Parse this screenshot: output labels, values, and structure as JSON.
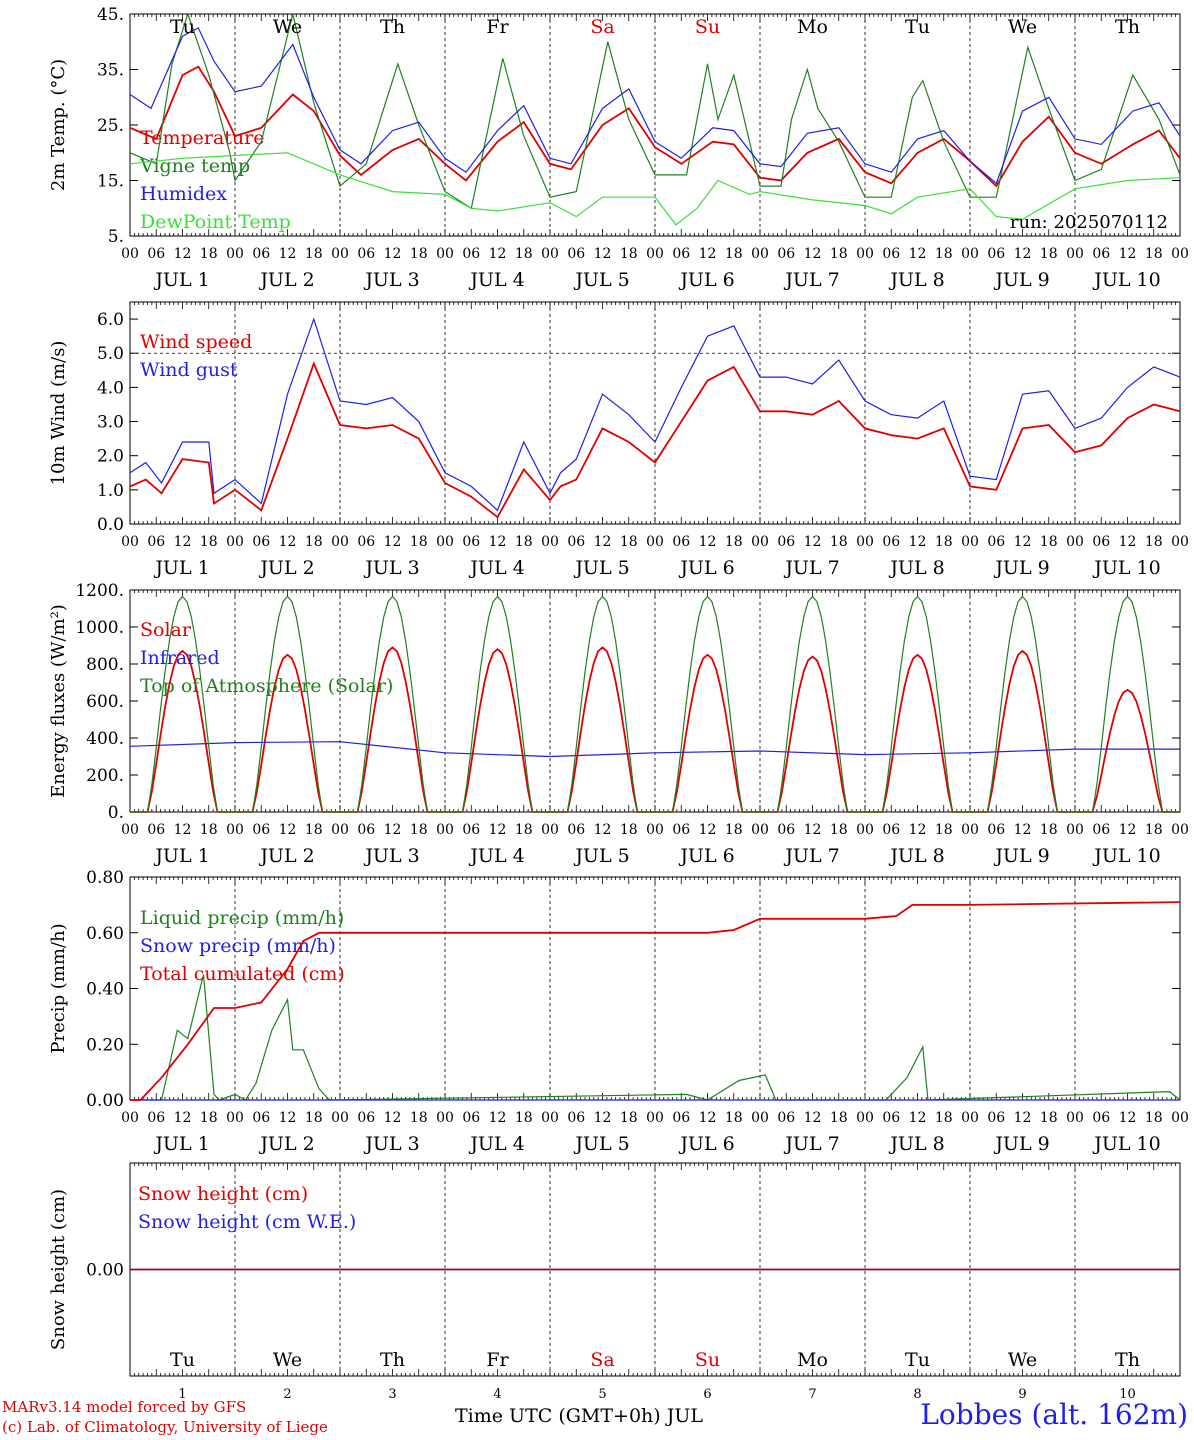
{
  "run_label": "run: 2025070112",
  "day_names": [
    {
      "name": "Tu",
      "color": "#000000"
    },
    {
      "name": "We",
      "color": "#000000"
    },
    {
      "name": "Th",
      "color": "#000000"
    },
    {
      "name": "Fr",
      "color": "#000000"
    },
    {
      "name": "Sa",
      "color": "#e00000"
    },
    {
      "name": "Su",
      "color": "#e00000"
    },
    {
      "name": "Mo",
      "color": "#000000"
    },
    {
      "name": "Tu",
      "color": "#000000"
    },
    {
      "name": "We",
      "color": "#000000"
    },
    {
      "name": "Th",
      "color": "#000000"
    }
  ],
  "date_labels": [
    "JUL 1",
    "JUL 2",
    "JUL 3",
    "JUL 4",
    "JUL 5",
    "JUL 6",
    "JUL 7",
    "JUL 8",
    "JUL 9",
    "JUL 10"
  ],
  "day_numbers": [
    "1",
    "2",
    "3",
    "4",
    "5",
    "6",
    "7",
    "8",
    "9",
    "10"
  ],
  "hour_ticks": [
    "00",
    "06",
    "12",
    "18"
  ],
  "footer": {
    "credit_line1": "MARv3.14 model forced by GFS",
    "credit_line2": "(c) Lab. of Climatology, University of Liege",
    "x_axis_title": "Time UTC (GMT+0h) JUL",
    "station": "Lobbes (alt. 162m)"
  },
  "colors": {
    "red": "#e00000",
    "green": "#208020",
    "blue": "#1f1fe6",
    "lightgreen": "#38e038"
  },
  "chart_data": [
    {
      "type": "line",
      "ylabel": "2m Temp. (°C)",
      "ylim": [
        5,
        45
      ],
      "yticks": [
        5,
        15,
        25,
        35,
        45
      ],
      "ytick_labels": [
        "5.",
        "15.",
        "25.",
        "35.",
        "45."
      ],
      "x_unit": "days since JUL 1 00 UTC",
      "x_range": [
        0,
        10
      ],
      "series": [
        {
          "name": "Temperature",
          "color": "#e00000",
          "x": [
            0,
            0.25,
            0.5,
            0.65,
            0.8,
            1.0,
            1.25,
            1.55,
            1.75,
            2.0,
            2.2,
            2.5,
            2.75,
            3.0,
            3.2,
            3.5,
            3.75,
            4.0,
            4.2,
            4.5,
            4.75,
            5.0,
            5.25,
            5.55,
            5.75,
            6.0,
            6.2,
            6.45,
            6.75,
            7.0,
            7.25,
            7.5,
            7.75,
            8.0,
            8.25,
            8.5,
            8.75,
            9.0,
            9.25,
            9.55,
            9.8,
            10.0
          ],
          "y": [
            24.5,
            22.5,
            34,
            35.5,
            31,
            23,
            24.5,
            30.5,
            27.5,
            19.5,
            16,
            20.5,
            22.5,
            18,
            15,
            22,
            25.5,
            18,
            17,
            25,
            28,
            21,
            18,
            22,
            21.5,
            15.5,
            15,
            20,
            22.5,
            16.5,
            14.5,
            20,
            22.5,
            18.5,
            14,
            22,
            26.5,
            20,
            18,
            21.5,
            24,
            19
          ]
        },
        {
          "name": "Vigne temp",
          "color": "#208020",
          "x": [
            0,
            0.25,
            0.4,
            0.55,
            0.75,
            0.95,
            1.0,
            1.25,
            1.55,
            1.75,
            2.0,
            2.25,
            2.55,
            2.75,
            3.0,
            3.25,
            3.55,
            3.75,
            4.0,
            4.25,
            4.55,
            4.75,
            5.0,
            5.3,
            5.5,
            5.6,
            5.75,
            6.0,
            6.2,
            6.3,
            6.45,
            6.55,
            6.75,
            7.0,
            7.25,
            7.45,
            7.55,
            7.75,
            8.0,
            8.25,
            8.55,
            8.75,
            9.0,
            9.25,
            9.55,
            9.8,
            10.0
          ],
          "y": [
            20,
            18,
            36,
            45,
            34,
            20,
            15,
            22,
            45,
            29,
            14,
            18,
            36,
            25,
            13,
            10,
            37,
            23,
            12,
            13,
            40,
            26,
            16,
            16,
            36,
            26,
            34,
            14,
            14,
            26,
            35,
            28,
            22,
            12,
            12,
            30,
            33,
            22,
            12,
            12,
            39,
            28,
            15,
            17,
            34,
            26,
            16
          ]
        },
        {
          "name": "Humidex",
          "color": "#1f1fe6",
          "x": [
            0,
            0.2,
            0.5,
            0.65,
            0.8,
            1.0,
            1.25,
            1.55,
            1.75,
            2.0,
            2.2,
            2.5,
            2.75,
            3.0,
            3.2,
            3.5,
            3.75,
            4.0,
            4.2,
            4.5,
            4.75,
            5.0,
            5.25,
            5.55,
            5.75,
            6.0,
            6.2,
            6.45,
            6.75,
            7.0,
            7.25,
            7.5,
            7.75,
            8.0,
            8.25,
            8.5,
            8.75,
            9.0,
            9.25,
            9.55,
            9.8,
            10.0
          ],
          "y": [
            30.5,
            28,
            41,
            42.5,
            36.5,
            31,
            32,
            39.5,
            30,
            20.5,
            18,
            24,
            25.5,
            19,
            16.5,
            24,
            28.5,
            19,
            18,
            28,
            31.5,
            22,
            19,
            24.5,
            24,
            18,
            17.5,
            23.5,
            24.5,
            18,
            16.5,
            22.5,
            24,
            18.5,
            14.5,
            27.5,
            30,
            22.5,
            21.5,
            27.5,
            29,
            23
          ]
        },
        {
          "name": "DewPoint Temp",
          "color": "#38e038",
          "x": [
            0,
            0.5,
            1.0,
            1.5,
            2.0,
            2.5,
            3.0,
            3.25,
            3.5,
            4.0,
            4.25,
            4.5,
            5.0,
            5.2,
            5.4,
            5.6,
            5.9,
            6.0,
            6.5,
            7.0,
            7.25,
            7.5,
            8.0,
            8.25,
            8.5,
            9.0,
            9.5,
            10.0
          ],
          "y": [
            18,
            19,
            19.5,
            20,
            16,
            13,
            12.5,
            10,
            9.5,
            11,
            8.5,
            12,
            12,
            7,
            10,
            15,
            12.5,
            13,
            11.5,
            10.5,
            9,
            12,
            13.5,
            8.5,
            8,
            13.5,
            15,
            15.5
          ]
        }
      ]
    },
    {
      "type": "line",
      "ylabel": "10m Wind (m/s)",
      "ylim": [
        0,
        6.5
      ],
      "yticks": [
        0,
        1,
        2,
        3,
        4,
        5,
        6
      ],
      "ytick_labels": [
        "0.0",
        "1.0",
        "2.0",
        "3.0",
        "4.0",
        "5.0",
        "6.0"
      ],
      "reference_line": 5.0,
      "x_unit": "days since JUL 1 00 UTC",
      "x_range": [
        0,
        10
      ],
      "series": [
        {
          "name": "Wind speed",
          "color": "#e00000",
          "x": [
            0,
            0.15,
            0.3,
            0.5,
            0.75,
            0.8,
            1.0,
            1.25,
            1.5,
            1.75,
            2.0,
            2.25,
            2.5,
            2.75,
            3.0,
            3.25,
            3.5,
            3.75,
            4.0,
            4.1,
            4.25,
            4.5,
            4.75,
            5.0,
            5.25,
            5.5,
            5.75,
            6.0,
            6.25,
            6.5,
            6.75,
            7.0,
            7.25,
            7.5,
            7.75,
            8.0,
            8.25,
            8.5,
            8.75,
            9.0,
            9.25,
            9.5,
            9.75,
            10.0
          ],
          "y": [
            1.1,
            1.3,
            0.9,
            1.9,
            1.8,
            0.6,
            1.0,
            0.4,
            2.5,
            4.7,
            2.9,
            2.8,
            2.9,
            2.5,
            1.2,
            0.8,
            0.2,
            1.6,
            0.7,
            1.1,
            1.3,
            2.8,
            2.4,
            1.8,
            3.0,
            4.2,
            4.6,
            3.3,
            3.3,
            3.2,
            3.6,
            2.8,
            2.6,
            2.5,
            2.8,
            1.1,
            1.0,
            2.8,
            2.9,
            2.1,
            2.3,
            3.1,
            3.5,
            3.3
          ]
        },
        {
          "name": "Wind gust",
          "color": "#1f1fe6",
          "x": [
            0,
            0.15,
            0.3,
            0.5,
            0.75,
            0.8,
            1.0,
            1.25,
            1.5,
            1.75,
            2.0,
            2.25,
            2.5,
            2.75,
            3.0,
            3.25,
            3.5,
            3.75,
            4.0,
            4.1,
            4.25,
            4.5,
            4.75,
            5.0,
            5.25,
            5.5,
            5.75,
            6.0,
            6.25,
            6.5,
            6.75,
            7.0,
            7.25,
            7.5,
            7.75,
            8.0,
            8.25,
            8.5,
            8.75,
            9.0,
            9.25,
            9.5,
            9.75,
            10.0
          ],
          "y": [
            1.5,
            1.8,
            1.2,
            2.4,
            2.4,
            0.9,
            1.3,
            0.6,
            3.8,
            6.0,
            3.6,
            3.5,
            3.7,
            3.0,
            1.5,
            1.1,
            0.4,
            2.4,
            0.9,
            1.5,
            1.9,
            3.8,
            3.2,
            2.4,
            4.0,
            5.5,
            5.8,
            4.3,
            4.3,
            4.1,
            4.8,
            3.6,
            3.2,
            3.1,
            3.6,
            1.4,
            1.3,
            3.8,
            3.9,
            2.8,
            3.1,
            4.0,
            4.6,
            4.3
          ]
        }
      ]
    },
    {
      "type": "line",
      "ylabel": "Energy fluxes (W/m²)",
      "ylim": [
        0,
        1200
      ],
      "yticks": [
        0,
        200,
        400,
        600,
        800,
        1000,
        1200
      ],
      "ytick_labels": [
        "0.",
        "200.",
        "400.",
        "600.",
        "800.",
        "1000.",
        "1200."
      ],
      "x_unit": "days since JUL 1 00 UTC",
      "x_range": [
        0,
        10
      ],
      "daily_peak_hour_utc": 12,
      "daylight_hours_utc": [
        4,
        20
      ],
      "series": [
        {
          "name": "Solar",
          "color": "#e00000",
          "daily_peak": [
            870,
            850,
            890,
            880,
            890,
            850,
            840,
            850,
            870,
            660
          ]
        },
        {
          "name": "Infrared",
          "color": "#1f1fe6",
          "x": [
            0,
            1,
            2,
            3,
            4,
            5,
            6,
            7,
            8,
            9,
            10
          ],
          "y": [
            355,
            375,
            380,
            320,
            300,
            320,
            330,
            310,
            320,
            340,
            340
          ]
        },
        {
          "name": "Top of Atmosphere (Solar)",
          "color": "#208020",
          "daily_peak": [
            1165,
            1165,
            1165,
            1165,
            1165,
            1165,
            1165,
            1165,
            1165,
            1165
          ]
        }
      ]
    },
    {
      "type": "line",
      "ylabel": "Precip (mm/h)",
      "ylim": [
        0,
        0.8
      ],
      "yticks": [
        0,
        0.2,
        0.4,
        0.6,
        0.8
      ],
      "ytick_labels": [
        "0.00",
        "0.20",
        "0.40",
        "0.60",
        "0.80"
      ],
      "x_unit": "days since JUL 1 00 UTC",
      "x_range": [
        0,
        10
      ],
      "series": [
        {
          "name": "Liquid precip (mm/h)",
          "color": "#208020",
          "x": [
            0,
            0.1,
            0.3,
            0.45,
            0.55,
            0.7,
            0.8,
            0.85,
            1.0,
            1.1,
            1.2,
            1.35,
            1.5,
            1.55,
            1.65,
            1.8,
            1.9,
            5.3,
            5.5,
            5.8,
            6.05,
            6.15,
            7.2,
            7.4,
            7.55,
            7.6,
            9.9,
            10.0
          ],
          "y": [
            0.0,
            0.0,
            0.0,
            0.25,
            0.22,
            0.45,
            0.02,
            0.0,
            0.02,
            0.0,
            0.06,
            0.25,
            0.36,
            0.18,
            0.18,
            0.04,
            0.0,
            0.02,
            0.0,
            0.07,
            0.09,
            0.0,
            0.0,
            0.08,
            0.19,
            0.0,
            0.03,
            0.0
          ]
        },
        {
          "name": "Snow precip (mm/h)",
          "color": "#1f1fe6",
          "x": [
            0,
            10
          ],
          "y": [
            0,
            0
          ]
        },
        {
          "name": "Total cumulated (cm)",
          "color": "#e00000",
          "x": [
            0,
            0.1,
            0.3,
            0.55,
            0.8,
            1.0,
            1.25,
            1.5,
            1.65,
            1.8,
            2.0,
            5.5,
            5.75,
            6.0,
            6.2,
            7.0,
            7.3,
            7.45,
            8.0,
            10.0
          ],
          "y": [
            0.0,
            0.0,
            0.08,
            0.2,
            0.33,
            0.33,
            0.35,
            0.47,
            0.57,
            0.6,
            0.6,
            0.6,
            0.61,
            0.65,
            0.65,
            0.65,
            0.66,
            0.7,
            0.7,
            0.71
          ]
        }
      ]
    },
    {
      "type": "line",
      "ylabel": "Snow height (cm)",
      "ylim": [
        -1,
        1
      ],
      "yticks": [
        0
      ],
      "ytick_labels": [
        "0.00"
      ],
      "x_unit": "days since JUL 1 00 UTC",
      "x_range": [
        0,
        10
      ],
      "series": [
        {
          "name": "Snow height (cm)",
          "color": "#e00000",
          "x": [
            0,
            10
          ],
          "y": [
            0,
            0
          ]
        },
        {
          "name": "Snow height (cm W.E.)",
          "color": "#1f1fe6",
          "x": [
            0,
            10
          ],
          "y": [
            0,
            0
          ]
        }
      ]
    }
  ]
}
